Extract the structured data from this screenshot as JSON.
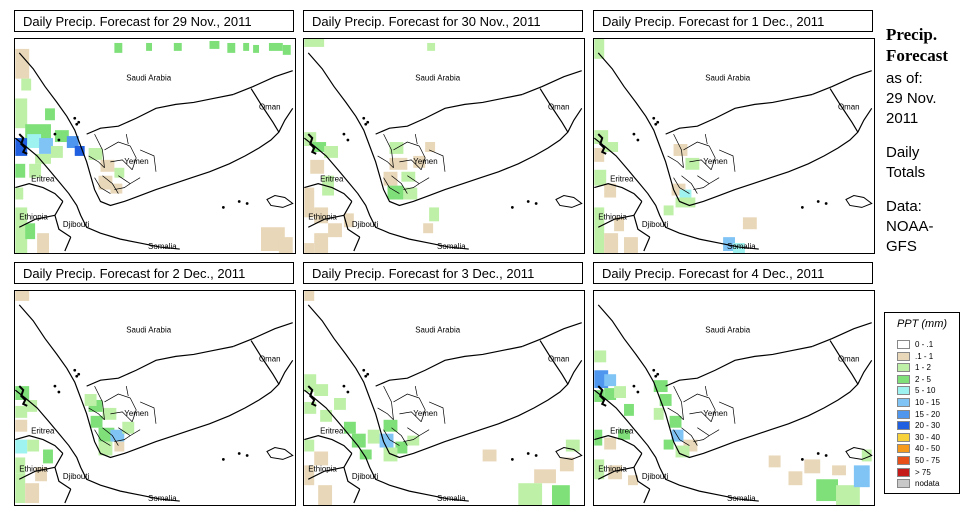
{
  "panels": [
    {
      "title": "Daily Precip. Forecast for  29 Nov., 2011"
    },
    {
      "title": "Daily Precip. Forecast for  30 Nov., 2011"
    },
    {
      "title": "Daily Precip. Forecast for  1 Dec., 2011"
    },
    {
      "title": "Daily Precip. Forecast for  2 Dec., 2011"
    },
    {
      "title": "Daily Precip. Forecast for  3 Dec., 2011"
    },
    {
      "title": "Daily Precip. Forecast for  4 Dec., 2011"
    }
  ],
  "map_labels": {
    "saudi": "Saudi Arabia",
    "oman": "Oman",
    "yemen": "Yemen",
    "eritrea": "Eritrea",
    "ethiopia": "Ethiopia",
    "djibouti": "Djibouti",
    "somalia": "Somalia"
  },
  "sidebar": {
    "heading_1": "Precip.",
    "heading_2": "Forecast",
    "line_1": "as of:",
    "line_2": "29 Nov.",
    "line_3": "2011",
    "line_4": "Daily",
    "line_5": "Totals",
    "line_6": "Data:",
    "line_7": "NOAA-",
    "line_8": "GFS"
  },
  "legend": {
    "title": "PPT (mm)",
    "items": [
      {
        "label": "0 - .1",
        "color": "#ffffff"
      },
      {
        "label": ".1 - 1",
        "color": "#e8d7b8"
      },
      {
        "label": "1 - 2",
        "color": "#bff0a8"
      },
      {
        "label": "2 - 5",
        "color": "#7fe07a"
      },
      {
        "label": "5 - 10",
        "color": "#9ef3f0"
      },
      {
        "label": "10 - 15",
        "color": "#7fc4f5"
      },
      {
        "label": "15 - 20",
        "color": "#4f97ee"
      },
      {
        "label": "20 - 30",
        "color": "#1f5fe0"
      },
      {
        "label": "30 - 40",
        "color": "#f7d23a"
      },
      {
        "label": "40 - 50",
        "color": "#f59a1a"
      },
      {
        "label": "50 - 75",
        "color": "#e8501a"
      },
      {
        "label": "> 75",
        "color": "#c41a1a"
      },
      {
        "label": "nodata",
        "color": "#c8c8c8"
      }
    ]
  }
}
